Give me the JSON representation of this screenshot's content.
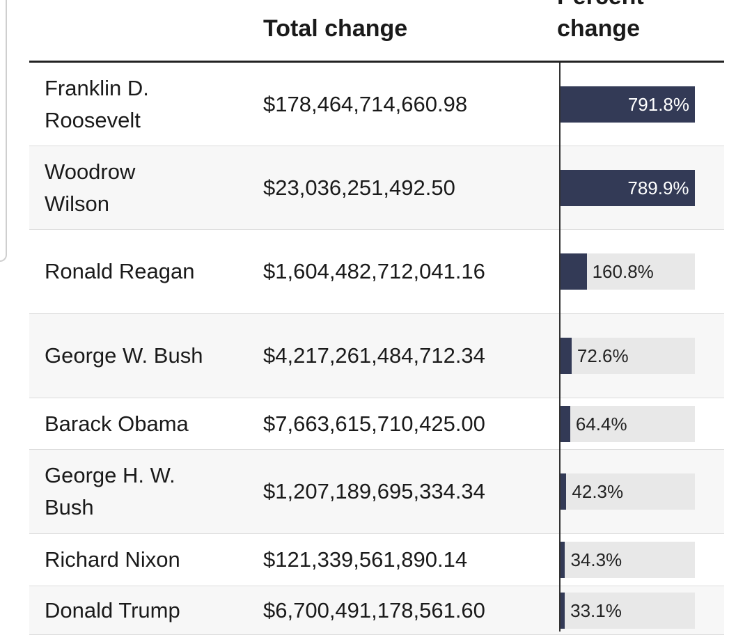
{
  "table": {
    "headers": [
      "Total change",
      "Percent change"
    ],
    "rows": [
      {
        "name": "Franklin D. Roosevelt",
        "total": "$178,464,714,660.98",
        "percent": {
          "value": 791.8,
          "label": "791.8%"
        }
      },
      {
        "name": "Woodrow Wilson",
        "total": "$23,036,251,492.50",
        "percent": {
          "value": 789.9,
          "label": "789.9%"
        }
      },
      {
        "name": "Ronald Reagan",
        "total": "$1,604,482,712,041.16",
        "percent": {
          "value": 160.8,
          "label": "160.8%"
        }
      },
      {
        "name": "George W. Bush",
        "total": "$4,217,261,484,712.34",
        "percent": {
          "value": 72.6,
          "label": "72.6%"
        }
      },
      {
        "name": "Barack Obama",
        "total": "$7,663,615,710,425.00",
        "percent": {
          "value": 64.4,
          "label": "64.4%"
        }
      },
      {
        "name": "George H. W. Bush",
        "total": "$1,207,189,695,334.34",
        "percent": {
          "value": 42.3,
          "label": "42.3%"
        }
      },
      {
        "name": "Richard Nixon",
        "total": "$121,339,561,890.14",
        "percent": {
          "value": 34.3,
          "label": "34.3%"
        }
      },
      {
        "name": "Donald Trump",
        "total": "$6,700,491,178,561.60",
        "percent": {
          "value": 33.1,
          "label": "33.1%"
        }
      }
    ]
  }
}
